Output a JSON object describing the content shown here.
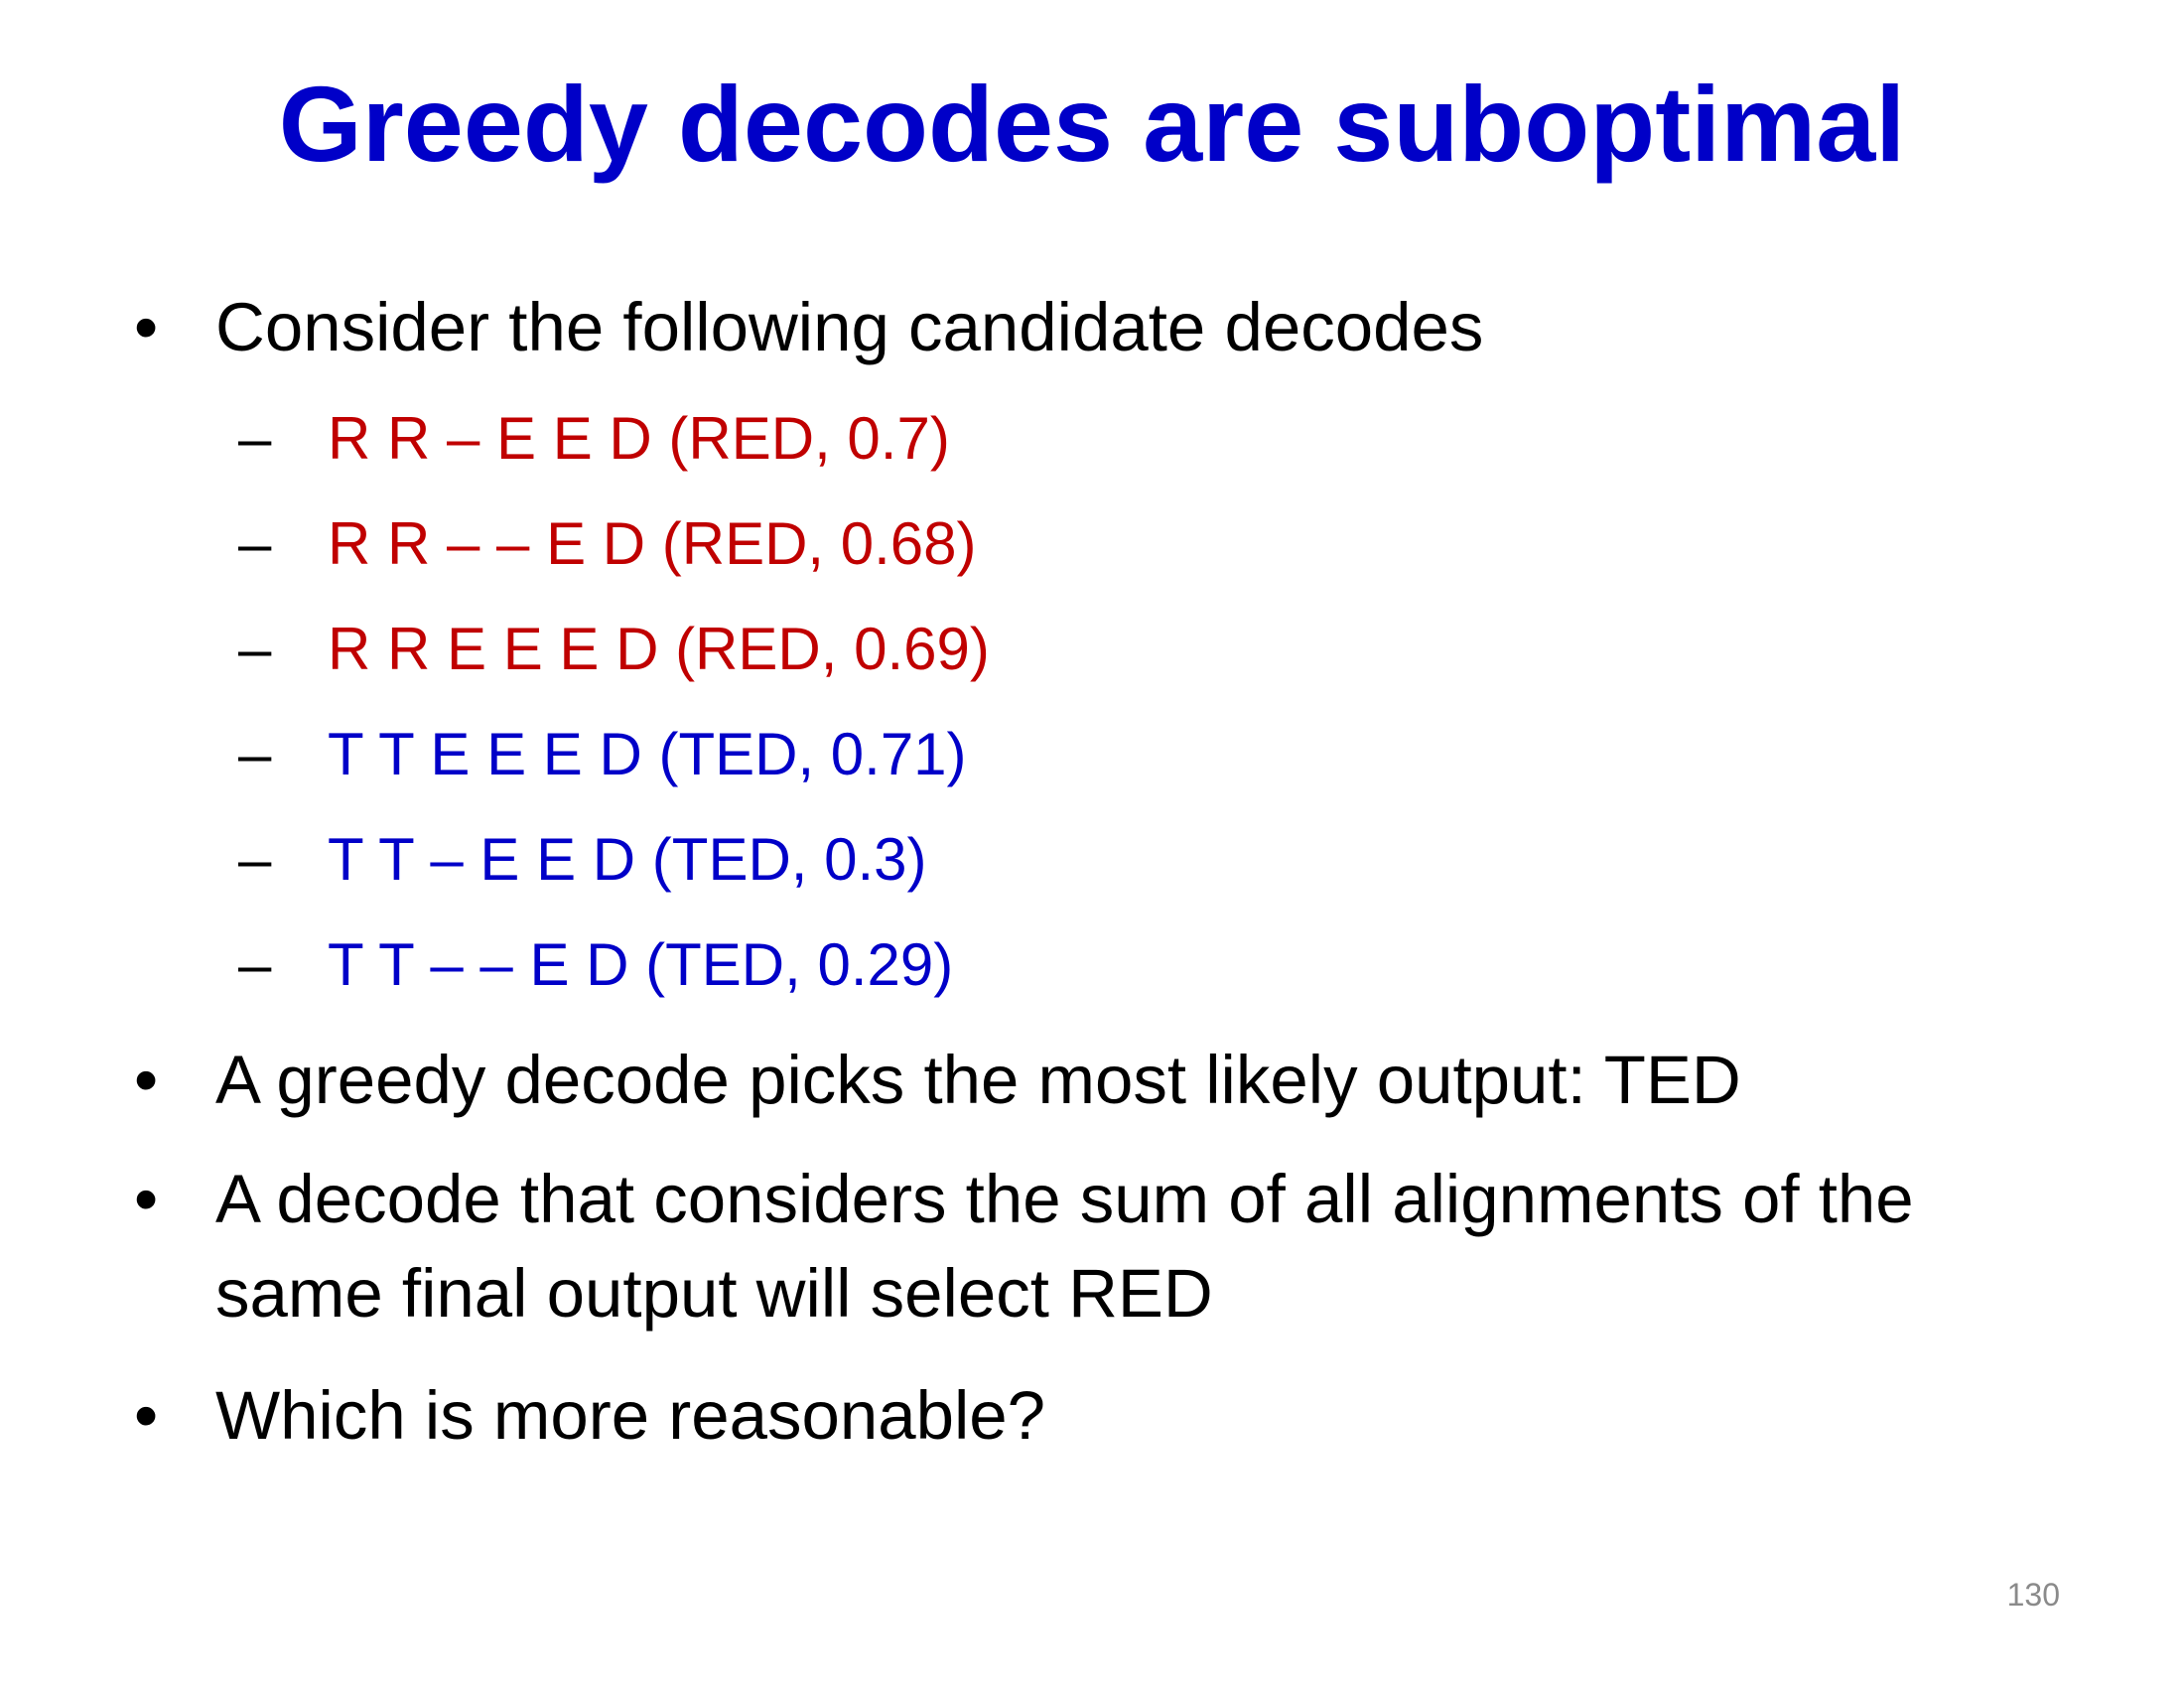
{
  "slide": {
    "title": "Greedy decodes are suboptimal",
    "page_number": "130",
    "colors": {
      "title": "#0000c8",
      "red_candidate": "#c00000",
      "blue_candidate": "#0000c8",
      "body_text": "#000000"
    },
    "bullets": [
      {
        "marker": "•",
        "text": "Consider the following candidate decodes"
      },
      {
        "marker": "•",
        "text": "A greedy decode picks the most likely output: TED"
      },
      {
        "marker": "•",
        "text": "A decode that considers the sum of all alignments of the same final output will select RED"
      },
      {
        "marker": "•",
        "text": "Which is more reasonable?"
      }
    ],
    "candidates": [
      {
        "marker": "–",
        "text": "R R – E E D (RED, 0.7)"
      },
      {
        "marker": "–",
        "text": "R R – – E D (RED, 0.68)"
      },
      {
        "marker": "–",
        "text": "R R E E E D (RED, 0.69)"
      },
      {
        "marker": "–",
        "text": "T T E E E D (TED, 0.71)"
      },
      {
        "marker": "–",
        "text": "T T – E E D (TED, 0.3)"
      },
      {
        "marker": "–",
        "text": "T T – – E D (TED, 0.29)"
      }
    ]
  }
}
